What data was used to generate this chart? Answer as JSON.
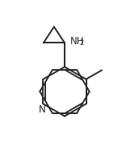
{
  "background_color": "#ffffff",
  "line_color": "#2a2a2a",
  "line_width": 1.4,
  "text_color": "#2a2a2a",
  "xlim": [
    0,
    10
  ],
  "ylim": [
    0,
    12
  ],
  "figsize": [
    1.51,
    1.83
  ],
  "dpi": 100,
  "n_label": "N",
  "nh2_label": "NH",
  "nh2_sub": "2",
  "font_size_label": 8.5,
  "font_size_sub": 6.0
}
